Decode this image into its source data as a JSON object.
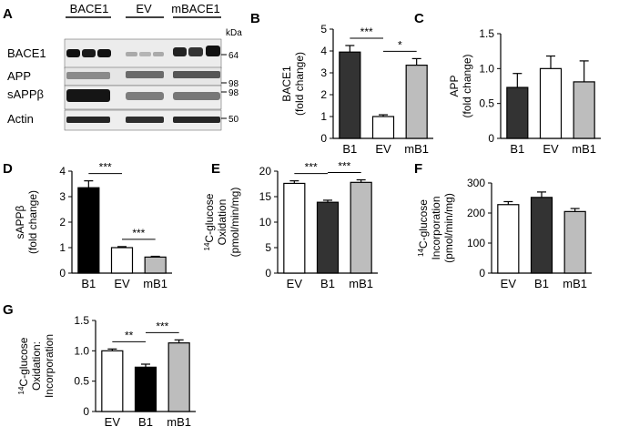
{
  "blot": {
    "panel_label": "A",
    "groups": [
      "BACE1",
      "EV",
      "mBACE1"
    ],
    "unit": "kDa",
    "rows": [
      {
        "label": "BACE1",
        "marker": "64"
      },
      {
        "label": "APP",
        "marker": "98"
      },
      {
        "label": "sAPPβ",
        "marker": "98"
      },
      {
        "label": "Actin",
        "marker": "50"
      }
    ]
  },
  "chart_data": [
    {
      "panel": "B",
      "type": "bar",
      "categories": [
        "B1",
        "EV",
        "mB1"
      ],
      "values": [
        3.95,
        1.0,
        3.35
      ],
      "errors": [
        0.3,
        0.08,
        0.3
      ],
      "colors": [
        "#333333",
        "#ffffff",
        "#bdbdbd"
      ],
      "ylabel": [
        "BACE1",
        "(fold change)"
      ],
      "ylim": [
        0,
        5
      ],
      "yticks": [
        0,
        1,
        2,
        3,
        4,
        5
      ],
      "significance": [
        {
          "from": 0,
          "to": 1,
          "label": "***"
        },
        {
          "from": 1,
          "to": 2,
          "label": "*"
        }
      ]
    },
    {
      "panel": "C",
      "type": "bar",
      "categories": [
        "B1",
        "EV",
        "mB1"
      ],
      "values": [
        0.73,
        1.0,
        0.81
      ],
      "errors": [
        0.2,
        0.18,
        0.3
      ],
      "colors": [
        "#333333",
        "#ffffff",
        "#bdbdbd"
      ],
      "ylabel": [
        "APP",
        "(fold change)"
      ],
      "ylim": [
        0,
        1.5
      ],
      "yticks": [
        0,
        0.5,
        1.0,
        1.5
      ],
      "ytick_labels": [
        "0",
        "0.5",
        "1.0",
        "1.5"
      ],
      "significance": []
    },
    {
      "panel": "D",
      "type": "bar",
      "categories": [
        "B1",
        "EV",
        "mB1"
      ],
      "values": [
        3.35,
        1.0,
        0.63
      ],
      "errors": [
        0.27,
        0.04,
        0.03
      ],
      "colors": [
        "#000000",
        "#ffffff",
        "#bdbdbd"
      ],
      "ylabel": [
        "sAPPβ",
        "(fold change)"
      ],
      "ylim": [
        0,
        4
      ],
      "yticks": [
        0,
        1,
        2,
        3,
        4
      ],
      "significance": [
        {
          "from": 0,
          "to": 1,
          "label": "***"
        },
        {
          "from": 1,
          "to": 2,
          "label": "***"
        }
      ]
    },
    {
      "panel": "E",
      "type": "bar",
      "categories": [
        "EV",
        "B1",
        "mB1"
      ],
      "values": [
        17.6,
        13.9,
        17.8
      ],
      "errors": [
        0.5,
        0.4,
        0.5
      ],
      "colors": [
        "#ffffff",
        "#333333",
        "#bdbdbd"
      ],
      "ylabel": [
        "14C-glucose",
        "Oxidation",
        "(pmol/min/mg)"
      ],
      "ylim": [
        0,
        20
      ],
      "yticks": [
        0,
        5,
        10,
        15,
        20
      ],
      "significance": [
        {
          "from": 0,
          "to": 1,
          "label": "***"
        },
        {
          "from": 1,
          "to": 2,
          "label": "***"
        }
      ]
    },
    {
      "panel": "F",
      "type": "bar",
      "categories": [
        "EV",
        "B1",
        "mB1"
      ],
      "values": [
        228,
        252,
        205
      ],
      "errors": [
        10,
        18,
        10
      ],
      "colors": [
        "#ffffff",
        "#333333",
        "#bdbdbd"
      ],
      "ylabel": [
        "14C-glucose",
        "Incorporation",
        "(pmol/min/mg)"
      ],
      "ylim": [
        0,
        300
      ],
      "yticks": [
        0,
        100,
        200,
        300
      ],
      "significance": []
    },
    {
      "panel": "G",
      "type": "bar",
      "categories": [
        "EV",
        "B1",
        "mB1"
      ],
      "values": [
        1.0,
        0.73,
        1.13
      ],
      "errors": [
        0.03,
        0.05,
        0.05
      ],
      "colors": [
        "#ffffff",
        "#000000",
        "#bdbdbd"
      ],
      "ylabel": [
        "14C-glucose",
        "Oxidation:",
        "Incorporation"
      ],
      "ylim": [
        0,
        1.5
      ],
      "yticks": [
        0,
        0.5,
        1.0,
        1.5
      ],
      "ytick_labels": [
        "0",
        "0.5",
        "1.0",
        "1.5"
      ],
      "significance": [
        {
          "from": 0,
          "to": 1,
          "label": "**"
        },
        {
          "from": 1,
          "to": 2,
          "label": "***"
        }
      ]
    }
  ]
}
